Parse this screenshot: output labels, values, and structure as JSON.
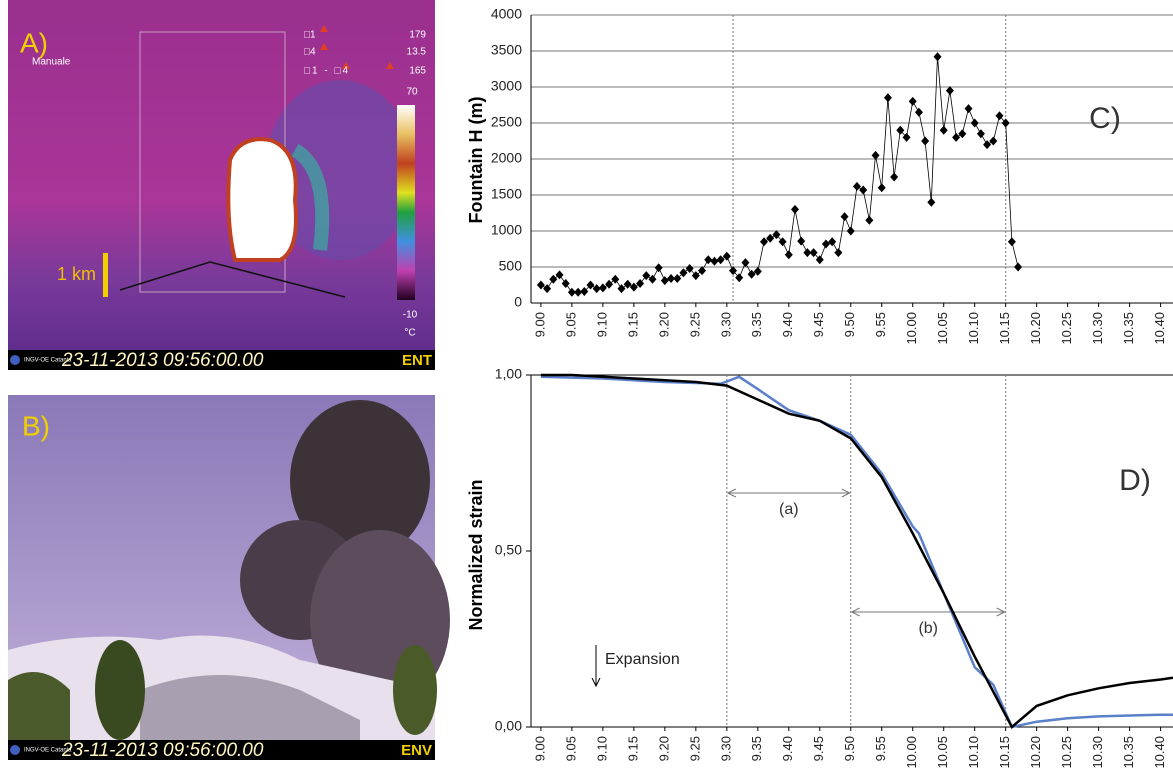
{
  "panel_a": {
    "label": "A)",
    "mode": "Manuale",
    "legend": [
      "□1",
      "□4",
      "□1 - □4"
    ],
    "legend_values": [
      "179",
      "13.5",
      "165"
    ],
    "scale_max": "70",
    "scale_min": "-10",
    "unit": "°C",
    "scale_bar": "1 km",
    "stamp_source": "INGV-OE Catania",
    "timestamp": "23-11-2013 09:56:00.00",
    "channel": "ENT"
  },
  "panel_b": {
    "label": "B)",
    "stamp_source": "INGV-OE Catania",
    "timestamp": "23-11-2013 09:56:00.00",
    "channel": "ENV"
  },
  "chart_data": [
    {
      "type": "scatter",
      "panel_label": "C)",
      "ylabel": "Fountain H (m)",
      "xlim": [
        -1.6,
        102
      ],
      "ylim": [
        0,
        4000
      ],
      "xticks": [
        {
          "value": 0,
          "label": "9.00"
        },
        {
          "value": 5,
          "label": "9.05"
        },
        {
          "value": 10,
          "label": "9.10"
        },
        {
          "value": 15,
          "label": "9.15"
        },
        {
          "value": 20,
          "label": "9.20"
        },
        {
          "value": 25,
          "label": "9.25"
        },
        {
          "value": 30,
          "label": "9.30"
        },
        {
          "value": 35,
          "label": "9.35"
        },
        {
          "value": 40,
          "label": "9.40"
        },
        {
          "value": 45,
          "label": "9.45"
        },
        {
          "value": 50,
          "label": "9.50"
        },
        {
          "value": 55,
          "label": "9.55"
        },
        {
          "value": 60,
          "label": "10.00"
        },
        {
          "value": 65,
          "label": "10.05"
        },
        {
          "value": 70,
          "label": "10.10"
        },
        {
          "value": 75,
          "label": "10.15"
        },
        {
          "value": 80,
          "label": "10.20"
        },
        {
          "value": 85,
          "label": "10.25"
        },
        {
          "value": 90,
          "label": "10.30"
        },
        {
          "value": 95,
          "label": "10.35"
        },
        {
          "value": 100,
          "label": "10.40"
        }
      ],
      "yticks": [
        0,
        500,
        1000,
        1500,
        2000,
        2500,
        3000,
        3500,
        4000
      ],
      "grid": true,
      "vlines": [
        31,
        75
      ],
      "series": [
        {
          "color": "#000000",
          "marker": "diamond",
          "x": [
            0,
            1,
            2,
            3,
            4,
            5,
            6,
            7,
            8,
            9,
            10,
            11,
            12,
            13,
            14,
            15,
            16,
            17,
            18,
            19,
            20,
            21,
            22,
            23,
            24,
            25,
            26,
            27,
            28,
            29,
            30,
            31,
            32,
            33,
            34,
            35,
            36,
            37,
            38,
            39,
            40,
            41,
            42,
            43,
            44,
            45,
            46,
            47,
            48,
            49,
            50,
            51,
            52,
            53,
            54,
            55,
            56,
            57,
            58,
            59,
            60,
            61,
            62,
            63,
            64,
            65,
            66,
            67,
            68,
            69,
            70,
            71,
            72,
            73,
            74,
            75,
            76,
            77
          ],
          "values": [
            250,
            200,
            330,
            390,
            270,
            150,
            150,
            160,
            250,
            200,
            210,
            260,
            330,
            200,
            260,
            220,
            270,
            380,
            330,
            490,
            310,
            340,
            340,
            420,
            480,
            380,
            450,
            600,
            580,
            600,
            650,
            450,
            350,
            560,
            400,
            440,
            850,
            900,
            950,
            850,
            670,
            1300,
            860,
            700,
            700,
            600,
            820,
            850,
            700,
            1200,
            1000,
            1620,
            1570,
            1150,
            2050,
            1600,
            2850,
            1750,
            2400,
            2300,
            2800,
            2650,
            2250,
            1400,
            3420,
            2400,
            2950,
            2300,
            2350,
            2700,
            2500,
            2350,
            2200,
            2250,
            2600,
            2500,
            850,
            500
          ]
        }
      ]
    },
    {
      "type": "line",
      "panel_label": "D)",
      "ylabel": "Normalized strain",
      "xlim": [
        -1.6,
        102
      ],
      "ylim": [
        0,
        1
      ],
      "xticks": [
        {
          "value": 0,
          "label": "9.00"
        },
        {
          "value": 5,
          "label": "9.05"
        },
        {
          "value": 10,
          "label": "9.10"
        },
        {
          "value": 15,
          "label": "9.15"
        },
        {
          "value": 20,
          "label": "9.20"
        },
        {
          "value": 25,
          "label": "9.25"
        },
        {
          "value": 30,
          "label": "9.30"
        },
        {
          "value": 35,
          "label": "9.35"
        },
        {
          "value": 40,
          "label": "9.40"
        },
        {
          "value": 45,
          "label": "9.45"
        },
        {
          "value": 50,
          "label": "9.50"
        },
        {
          "value": 55,
          "label": "9.55"
        },
        {
          "value": 60,
          "label": "10.00"
        },
        {
          "value": 65,
          "label": "10.05"
        },
        {
          "value": 70,
          "label": "10.10"
        },
        {
          "value": 75,
          "label": "10.15"
        },
        {
          "value": 80,
          "label": "10.20"
        },
        {
          "value": 85,
          "label": "10.25"
        },
        {
          "value": 90,
          "label": "10.30"
        },
        {
          "value": 95,
          "label": "10.35"
        },
        {
          "value": 100,
          "label": "10.40"
        }
      ],
      "yticks": [
        {
          "value": 0,
          "label": "0,00"
        },
        {
          "value": 0.5,
          "label": "0,50"
        },
        {
          "value": 1,
          "label": "1,00"
        }
      ],
      "grid": false,
      "vlines": [
        30,
        50,
        75
      ],
      "spans": [
        {
          "label": "(a)",
          "from": 30,
          "to": 50
        },
        {
          "label": "(b)",
          "from": 50,
          "to": 75
        }
      ],
      "note": "Expansion",
      "series": [
        {
          "color": "#5b7fc9",
          "x": [
            0,
            10,
            20,
            29,
            32,
            35,
            40,
            45,
            50,
            55,
            60,
            61,
            65,
            70,
            73,
            76,
            80,
            85,
            90,
            100,
            102
          ],
          "values": [
            0.995,
            0.99,
            0.98,
            0.975,
            0.995,
            0.96,
            0.9,
            0.87,
            0.83,
            0.72,
            0.57,
            0.55,
            0.38,
            0.17,
            0.12,
            0.0,
            0.015,
            0.025,
            0.03,
            0.035,
            0.035
          ]
        },
        {
          "color": "#000000",
          "x": [
            0,
            5,
            10,
            15,
            20,
            25,
            30,
            35,
            40,
            45,
            50,
            55,
            60,
            65,
            70,
            76,
            80,
            85,
            90,
            95,
            100,
            102
          ],
          "values": [
            1.0,
            1.0,
            0.995,
            0.99,
            0.985,
            0.98,
            0.97,
            0.93,
            0.89,
            0.87,
            0.82,
            0.71,
            0.55,
            0.38,
            0.2,
            0.0,
            0.06,
            0.09,
            0.11,
            0.125,
            0.135,
            0.14
          ]
        }
      ]
    }
  ]
}
